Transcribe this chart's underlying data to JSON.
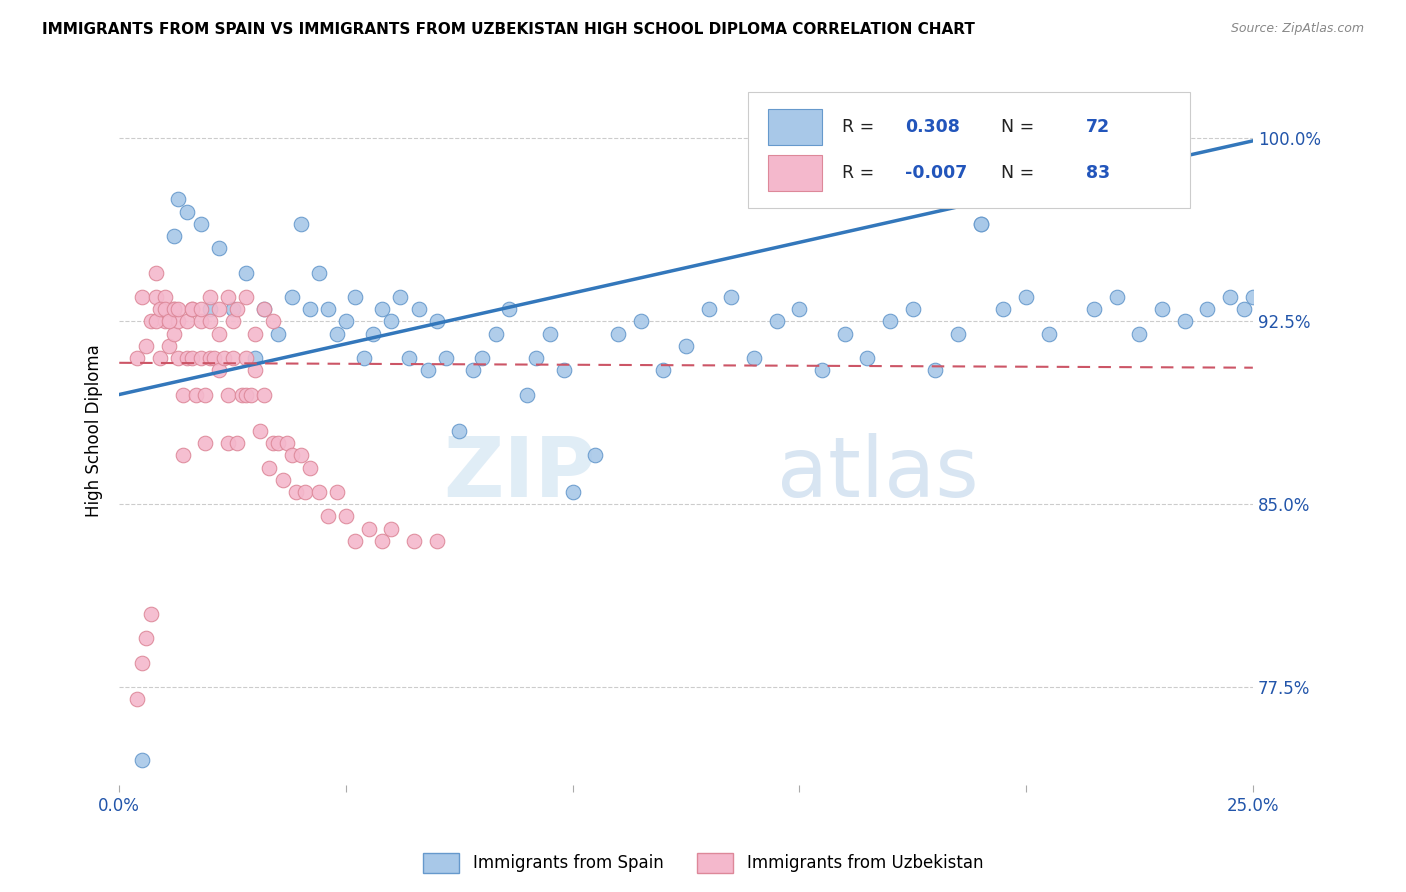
{
  "title": "IMMIGRANTS FROM SPAIN VS IMMIGRANTS FROM UZBEKISTAN HIGH SCHOOL DIPLOMA CORRELATION CHART",
  "source": "Source: ZipAtlas.com",
  "ylabel": "High School Diploma",
  "ytick_labels": [
    "100.0%",
    "92.5%",
    "85.0%",
    "77.5%"
  ],
  "ytick_values": [
    1.0,
    0.925,
    0.85,
    0.775
  ],
  "legend_blue_R": "0.308",
  "legend_blue_N": "72",
  "legend_pink_R": "-0.007",
  "legend_pink_N": "83",
  "legend_bottom_blue": "Immigrants from Spain",
  "legend_bottom_pink": "Immigrants from Uzbekistan",
  "blue_color": "#a8c8e8",
  "pink_color": "#f4b8cc",
  "line_blue": "#3377bb",
  "line_pink": "#cc5566",
  "watermark_zip": "ZIP",
  "watermark_atlas": "atlas",
  "xmin": 0.0,
  "xmax": 0.25,
  "ymin": 0.735,
  "ymax": 1.025,
  "blue_scatter_x": [
    0.005,
    0.012,
    0.013,
    0.015,
    0.018,
    0.02,
    0.022,
    0.025,
    0.028,
    0.03,
    0.032,
    0.035,
    0.038,
    0.04,
    0.042,
    0.044,
    0.046,
    0.048,
    0.05,
    0.052,
    0.054,
    0.056,
    0.058,
    0.06,
    0.062,
    0.064,
    0.066,
    0.068,
    0.07,
    0.072,
    0.075,
    0.078,
    0.08,
    0.083,
    0.086,
    0.09,
    0.092,
    0.095,
    0.098,
    0.1,
    0.105,
    0.11,
    0.115,
    0.12,
    0.125,
    0.13,
    0.135,
    0.14,
    0.145,
    0.15,
    0.155,
    0.16,
    0.165,
    0.17,
    0.175,
    0.18,
    0.185,
    0.19,
    0.195,
    0.2,
    0.205,
    0.21,
    0.215,
    0.22,
    0.225,
    0.23,
    0.235,
    0.24,
    0.245,
    0.248,
    0.25,
    0.19
  ],
  "blue_scatter_y": [
    0.745,
    0.96,
    0.975,
    0.97,
    0.965,
    0.93,
    0.955,
    0.93,
    0.945,
    0.91,
    0.93,
    0.92,
    0.935,
    0.965,
    0.93,
    0.945,
    0.93,
    0.92,
    0.925,
    0.935,
    0.91,
    0.92,
    0.93,
    0.925,
    0.935,
    0.91,
    0.93,
    0.905,
    0.925,
    0.91,
    0.88,
    0.905,
    0.91,
    0.92,
    0.93,
    0.895,
    0.91,
    0.92,
    0.905,
    0.855,
    0.87,
    0.92,
    0.925,
    0.905,
    0.915,
    0.93,
    0.935,
    0.91,
    0.925,
    0.93,
    0.905,
    0.92,
    0.91,
    0.925,
    0.93,
    0.905,
    0.92,
    0.965,
    0.93,
    0.935,
    0.92,
    0.995,
    0.93,
    0.935,
    0.92,
    0.93,
    0.925,
    0.93,
    0.935,
    0.93,
    0.935,
    0.965
  ],
  "pink_scatter_x": [
    0.004,
    0.005,
    0.006,
    0.007,
    0.008,
    0.008,
    0.009,
    0.01,
    0.01,
    0.011,
    0.012,
    0.012,
    0.013,
    0.013,
    0.014,
    0.015,
    0.015,
    0.016,
    0.016,
    0.017,
    0.018,
    0.018,
    0.019,
    0.019,
    0.02,
    0.02,
    0.021,
    0.022,
    0.022,
    0.023,
    0.024,
    0.024,
    0.025,
    0.025,
    0.026,
    0.027,
    0.028,
    0.028,
    0.029,
    0.03,
    0.031,
    0.032,
    0.033,
    0.034,
    0.035,
    0.036,
    0.037,
    0.038,
    0.039,
    0.04,
    0.041,
    0.042,
    0.044,
    0.046,
    0.048,
    0.05,
    0.052,
    0.055,
    0.058,
    0.06,
    0.065,
    0.07,
    0.004,
    0.005,
    0.006,
    0.007,
    0.008,
    0.009,
    0.01,
    0.011,
    0.012,
    0.013,
    0.014,
    0.016,
    0.018,
    0.02,
    0.022,
    0.024,
    0.026,
    0.028,
    0.03,
    0.032,
    0.034
  ],
  "pink_scatter_y": [
    0.91,
    0.935,
    0.915,
    0.925,
    0.935,
    0.945,
    0.91,
    0.925,
    0.935,
    0.915,
    0.92,
    0.93,
    0.91,
    0.925,
    0.895,
    0.91,
    0.925,
    0.91,
    0.93,
    0.895,
    0.91,
    0.925,
    0.875,
    0.895,
    0.91,
    0.925,
    0.91,
    0.905,
    0.92,
    0.91,
    0.875,
    0.895,
    0.91,
    0.925,
    0.875,
    0.895,
    0.895,
    0.91,
    0.895,
    0.905,
    0.88,
    0.895,
    0.865,
    0.875,
    0.875,
    0.86,
    0.875,
    0.87,
    0.855,
    0.87,
    0.855,
    0.865,
    0.855,
    0.845,
    0.855,
    0.845,
    0.835,
    0.84,
    0.835,
    0.84,
    0.835,
    0.835,
    0.77,
    0.785,
    0.795,
    0.805,
    0.925,
    0.93,
    0.93,
    0.925,
    0.93,
    0.93,
    0.87,
    0.93,
    0.93,
    0.935,
    0.93,
    0.935,
    0.93,
    0.935,
    0.92,
    0.93,
    0.925
  ]
}
